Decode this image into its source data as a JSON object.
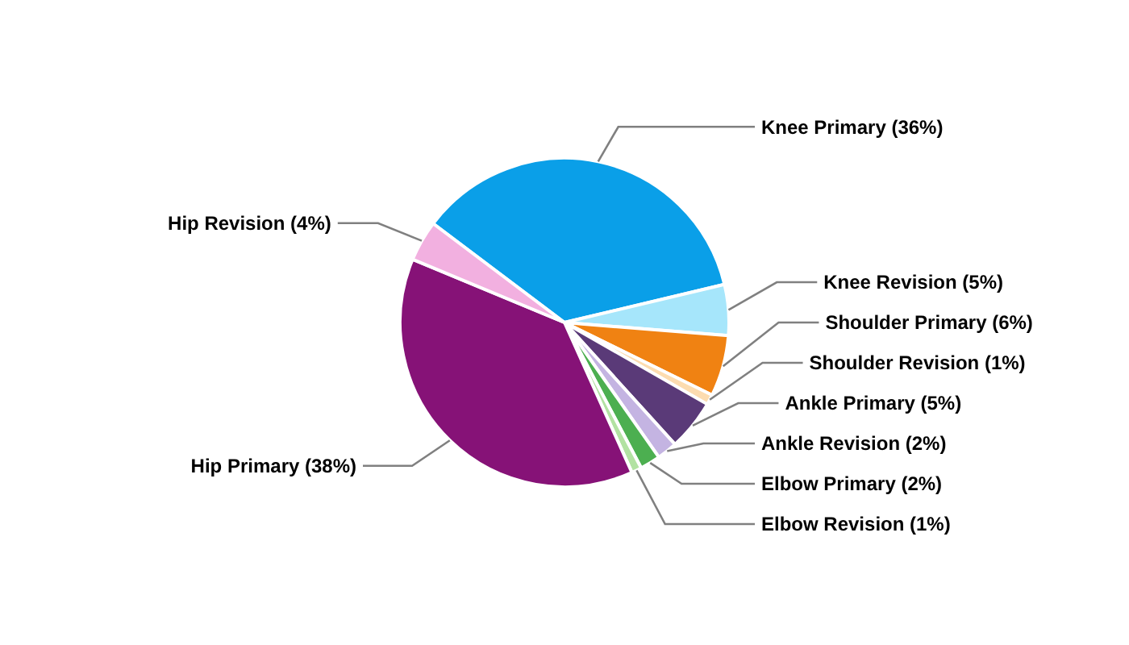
{
  "chart_data": {
    "type": "pie",
    "categories": [
      "Knee Primary (36%)",
      "Knee Revision (5%)",
      "Shoulder Primary (6%)",
      "Shoulder Revision (1%)",
      "Ankle Primary (5%)",
      "Ankle Revision (2%)",
      "Elbow Primary (2%)",
      "Elbow Revision (1%)",
      "Hip Primary (38%)",
      "Hip Revision (4%)"
    ],
    "values": [
      36,
      5,
      6,
      1,
      5,
      2,
      2,
      1,
      38,
      4
    ],
    "colors": [
      "#0a9fe8",
      "#a6e6fb",
      "#f08212",
      "#fcdcb0",
      "#5a3a78",
      "#c4b4e2",
      "#4caf50",
      "#b2e2a2",
      "#861277",
      "#f2b0e0"
    ]
  }
}
